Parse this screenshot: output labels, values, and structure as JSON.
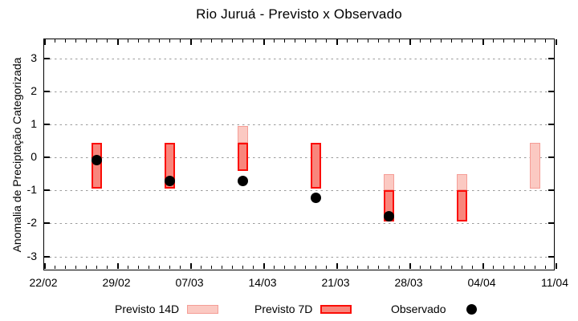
{
  "page": {
    "title": "Rio Juruá - Previsto x Observado"
  },
  "chart_data": {
    "type": "bar",
    "subtype": "forecast-interval-bars-with-observed-scatter",
    "title": "Rio Juruá - Previsto x Observado",
    "xlabel": "",
    "ylabel": "Anomalia de Preciptação Categorizada",
    "ylim": [
      -3.45,
      3.59
    ],
    "xlim_days": [
      0,
      49
    ],
    "grid": "horizontal dotted gray lines at integer y values",
    "legend_position": "bottom-center, outside plot",
    "y_ticks": [
      3,
      2,
      1,
      0,
      -1,
      -2,
      -3
    ],
    "x_ticks": [
      {
        "day": 0,
        "label": "22/02"
      },
      {
        "day": 7,
        "label": "29/02"
      },
      {
        "day": 14,
        "label": "07/03"
      },
      {
        "day": 21,
        "label": "14/03"
      },
      {
        "day": 28,
        "label": "21/03"
      },
      {
        "day": 35,
        "label": "28/03"
      },
      {
        "day": 42,
        "label": "04/04"
      },
      {
        "day": 49,
        "label": "11/04"
      }
    ],
    "x_minor_tick_every_days": 1,
    "series": [
      {
        "name": "Previsto 14D",
        "key": "previsto_14d",
        "fill": "#fbc9c2",
        "border": "#f59d96",
        "border_px": 1.5
      },
      {
        "name": "Previsto 7D",
        "key": "previsto_7d",
        "fill": "#f8867c",
        "border": "#fb0d07",
        "border_px": 2
      },
      {
        "name": "Observado",
        "key": "observado",
        "color": "#000000"
      }
    ],
    "bars": [
      {
        "date": "27/02",
        "day": 5,
        "segments": [
          {
            "series": "previsto_7d",
            "lo": -0.95,
            "hi": 0.45
          }
        ]
      },
      {
        "date": "05/03",
        "day": 12,
        "segments": [
          {
            "series": "previsto_7d",
            "lo": -0.95,
            "hi": 0.45
          }
        ]
      },
      {
        "date": "12/03",
        "day": 19,
        "segments": [
          {
            "series": "previsto_14d",
            "lo": 0.45,
            "hi": 0.95
          },
          {
            "series": "previsto_7d",
            "lo": -0.4,
            "hi": 0.45
          }
        ]
      },
      {
        "date": "19/03",
        "day": 26,
        "segments": [
          {
            "series": "previsto_7d",
            "lo": -0.95,
            "hi": 0.45
          }
        ]
      },
      {
        "date": "26/03",
        "day": 33,
        "segments": [
          {
            "series": "previsto_14d",
            "lo": -1.0,
            "hi": -0.5
          },
          {
            "series": "previsto_7d",
            "lo": -1.95,
            "hi": -1.0
          }
        ]
      },
      {
        "date": "02/04",
        "day": 40,
        "segments": [
          {
            "series": "previsto_14d",
            "lo": -1.0,
            "hi": -0.5
          },
          {
            "series": "previsto_7d",
            "lo": -1.95,
            "hi": -1.0
          }
        ]
      },
      {
        "date": "09/04",
        "day": 47,
        "segments": [
          {
            "series": "previsto_14d",
            "lo": -0.95,
            "hi": 0.45
          }
        ]
      }
    ],
    "observed": [
      {
        "date": "27/02",
        "day": 5,
        "value": -0.07
      },
      {
        "date": "05/03",
        "day": 12,
        "value": -0.72
      },
      {
        "date": "12/03",
        "day": 19,
        "value": -0.72
      },
      {
        "date": "19/03",
        "day": 26,
        "value": -1.22
      },
      {
        "date": "26/03",
        "day": 33,
        "value": -1.78
      }
    ]
  },
  "legend": {
    "items": [
      {
        "label": "Previsto 14D",
        "swatch": "previsto_14d"
      },
      {
        "label": "Previsto 7D",
        "swatch": "previsto_7d"
      },
      {
        "label": "Observado",
        "swatch": "observado"
      }
    ]
  },
  "colors": {
    "background": "#ffffff",
    "axis": "#000000",
    "grid": "#9b9b9b",
    "text": "#000000",
    "previsto_14d_fill": "#fbc9c2",
    "previsto_14d_border": "#f59d96",
    "previsto_7d_fill": "#f8867c",
    "previsto_7d_border": "#fb0d07",
    "observado": "#000000"
  }
}
